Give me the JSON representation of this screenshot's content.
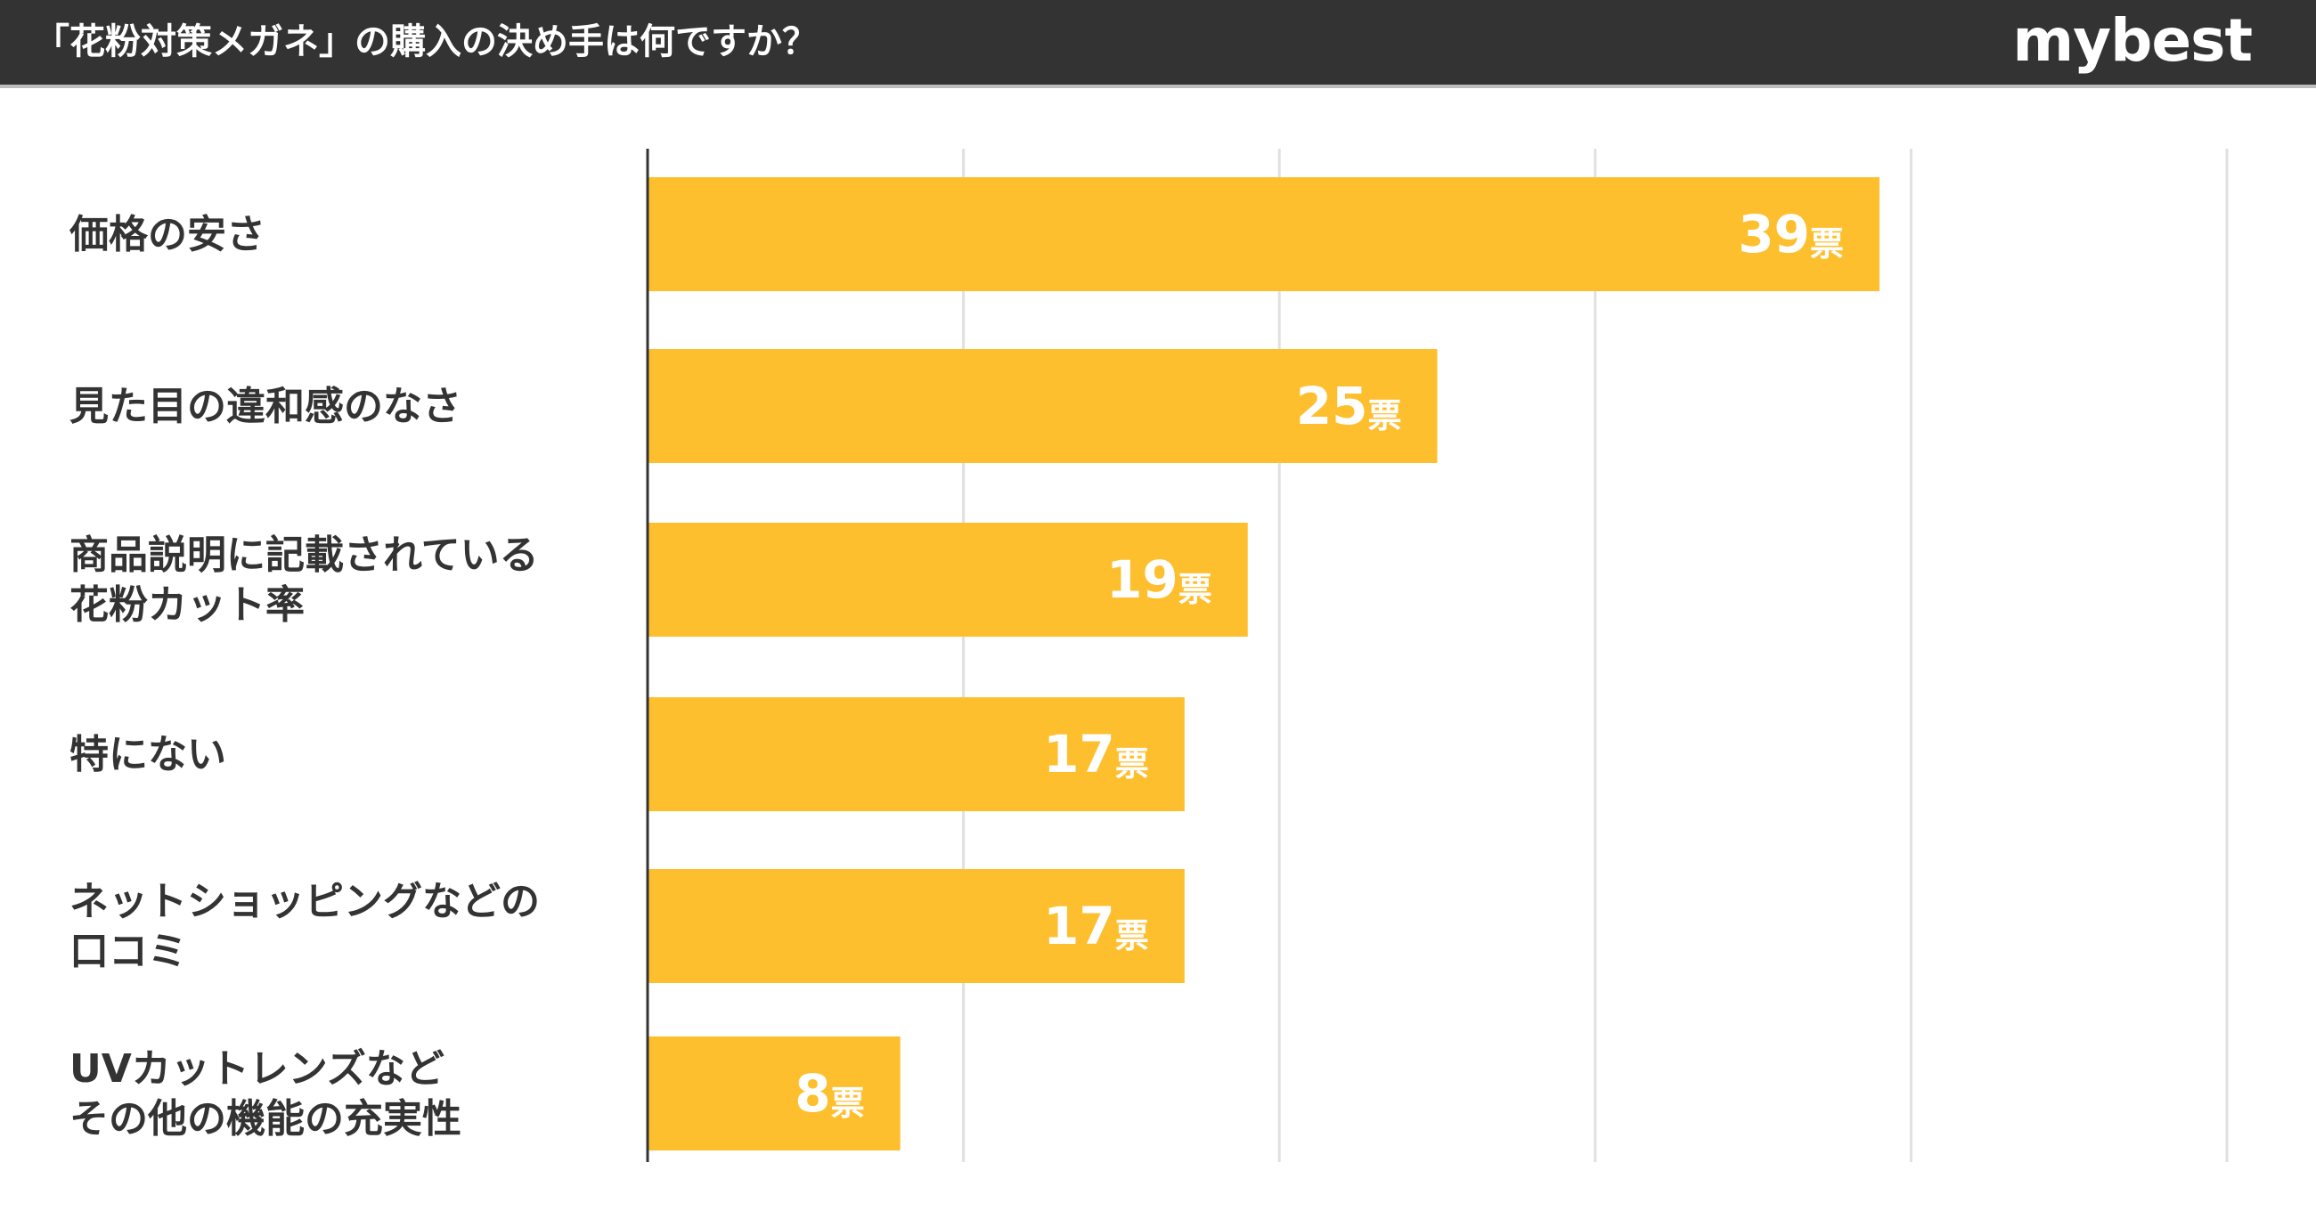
{
  "header": {
    "title": "「花粉対策メガネ」の購入の決め手は何ですか？",
    "brand": "mybest"
  },
  "colors": {
    "header_bg": "#333333",
    "bar": "#FEBF2F",
    "grid": "#e0e0e0",
    "axis": "#333333",
    "label": "#333333",
    "value_text": "#ffffff"
  },
  "chart_data": {
    "type": "bar",
    "orientation": "horizontal",
    "title": "「花粉対策メガネ」の購入の決め手は何ですか？",
    "categories": [
      [
        "価格の安さ"
      ],
      [
        "見た目の違和感のなさ"
      ],
      [
        "商品説明に記載されている",
        "花粉カット率"
      ],
      [
        "特にない"
      ],
      [
        "ネットショッピングなどの",
        "口コミ"
      ],
      [
        "UVカットレンズなど",
        "その他の機能の充実性"
      ]
    ],
    "values": [
      39,
      25,
      19,
      17,
      17,
      8
    ],
    "value_unit": "票",
    "xlim": [
      0,
      50
    ],
    "grid": true,
    "xlabel": "",
    "ylabel": ""
  }
}
